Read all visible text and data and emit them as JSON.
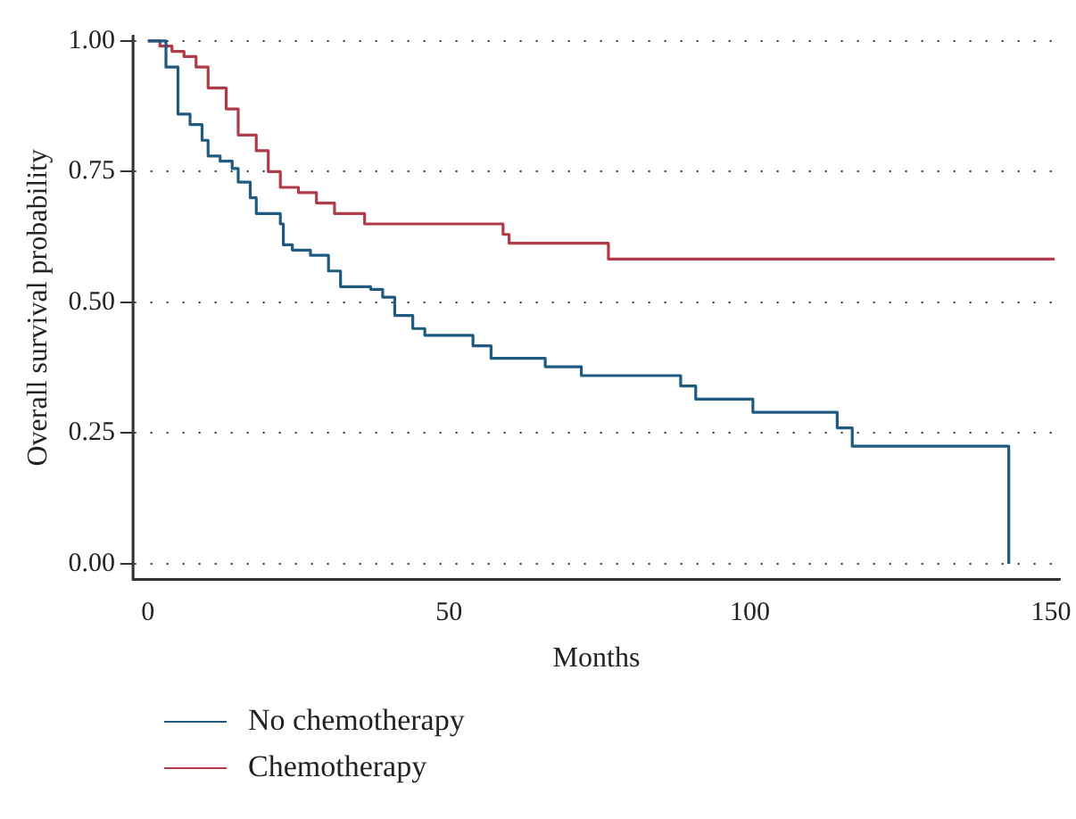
{
  "chart_data": {
    "type": "step",
    "xlabel": "Months",
    "ylabel": "Overall survival probability",
    "xlim": [
      -2.5,
      151.5
    ],
    "xticks": [
      0,
      50,
      100,
      150
    ],
    "ylim": [
      -0.03,
      1.01
    ],
    "yticks": [
      {
        "value": 0,
        "label": "0.00"
      },
      {
        "value": 0.25,
        "label": "0.25"
      },
      {
        "value": 0.5,
        "label": "0.50"
      },
      {
        "value": 0.75,
        "label": "0.75"
      },
      {
        "value": 1,
        "label": "1.00"
      }
    ],
    "grid": "y",
    "legend": "bottom left",
    "line_style": "solid",
    "marker": "none",
    "series": [
      {
        "name": "No chemotherapy",
        "color": "#1f5a80",
        "x": [
          0,
          3,
          5,
          7,
          9,
          10,
          12,
          14,
          15,
          17,
          18,
          22,
          22.5,
          24,
          27,
          30,
          32,
          37,
          39,
          41,
          44,
          46,
          54,
          57,
          66,
          72,
          88.5,
          91,
          100.5,
          114.5,
          117,
          143
        ],
        "values": [
          1,
          0.95,
          0.86,
          0.84,
          0.81,
          0.78,
          0.77,
          0.756,
          0.73,
          0.7,
          0.67,
          0.65,
          0.61,
          0.6,
          0.59,
          0.56,
          0.53,
          0.525,
          0.51,
          0.475,
          0.45,
          0.437,
          0.417,
          0.393,
          0.377,
          0.36,
          0.34,
          0.315,
          0.29,
          0.26,
          0.225,
          0
        ]
      },
      {
        "name": "Chemotherapy",
        "color": "#b03a48",
        "x": [
          0,
          2,
          4,
          6,
          8,
          10,
          13,
          15,
          18,
          20,
          22,
          25,
          28,
          31,
          36,
          59,
          60,
          76.5,
          150.6
        ],
        "values": [
          1,
          0.99,
          0.98,
          0.97,
          0.95,
          0.91,
          0.87,
          0.82,
          0.79,
          0.75,
          0.72,
          0.71,
          0.69,
          0.67,
          0.65,
          0.63,
          0.613,
          0.583,
          0.583
        ]
      }
    ]
  }
}
